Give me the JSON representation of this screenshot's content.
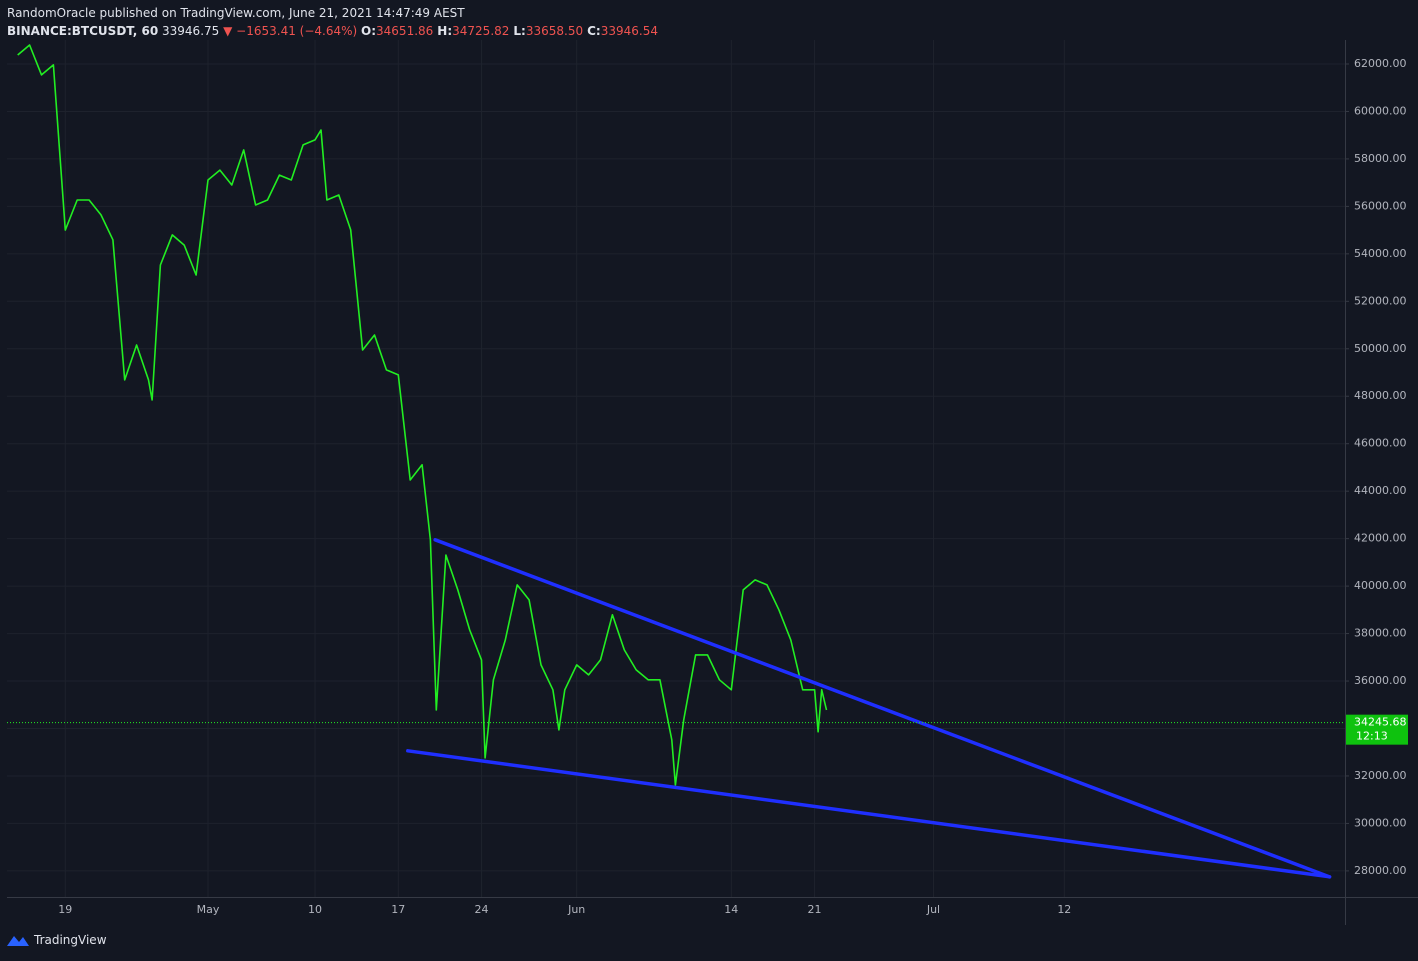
{
  "header": {
    "author_line": "RandomOracle published on TradingView.com, June 21, 2021 14:47:49 AEST",
    "symbol": "BINANCE:BTCUSDT, 60",
    "last": "33946.75",
    "arrow": "▼",
    "change": "−1653.41 (−4.64%)",
    "ohlc": [
      {
        "label": "O:",
        "value": "34651.86"
      },
      {
        "label": "H:",
        "value": "34725.82"
      },
      {
        "label": "L:",
        "value": "33658.50"
      },
      {
        "label": "C:",
        "value": "33946.54"
      }
    ]
  },
  "footer": {
    "brand": "TradingView"
  },
  "chart_data": {
    "type": "line",
    "color": "#22ee22",
    "grid": true,
    "x": [
      -4,
      -3,
      -2,
      -1,
      0,
      1,
      2,
      3,
      4,
      5,
      6,
      7,
      7.3,
      8,
      9,
      10,
      11,
      12,
      13,
      14,
      15,
      16,
      17,
      18,
      19,
      20,
      21,
      21.5,
      22,
      23,
      24,
      25,
      26,
      27,
      28,
      29,
      30,
      30.7,
      31.2,
      32,
      33,
      34,
      35,
      35.3,
      36,
      37,
      38,
      39,
      40,
      41,
      41.5,
      42,
      43,
      44,
      45,
      46,
      47,
      48,
      49,
      50,
      51,
      51.3,
      52,
      53,
      54,
      55,
      56,
      57,
      58,
      59,
      60,
      61,
      62,
      63,
      63.3,
      63.6,
      64
    ],
    "values": [
      62380,
      62800,
      61540,
      61960,
      55000,
      56270,
      56270,
      55640,
      54590,
      48690,
      50160,
      48690,
      47840,
      53530,
      54800,
      54370,
      53110,
      57110,
      57530,
      56900,
      58380,
      56060,
      56270,
      57320,
      57110,
      58590,
      58800,
      59220,
      56270,
      56480,
      55010,
      49950,
      50580,
      49110,
      48900,
      44470,
      45110,
      41950,
      34780,
      41310,
      39840,
      38150,
      36890,
      32760,
      36050,
      37730,
      40050,
      39420,
      36680,
      35630,
      33940,
      35630,
      36680,
      36260,
      36890,
      38790,
      37310,
      36470,
      36050,
      36050,
      33520,
      31620,
      34360,
      37100,
      37100,
      36050,
      35630,
      39840,
      40260,
      40050,
      39000,
      37730,
      35630,
      35630,
      33860,
      35630,
      34780
    ],
    "xlim": [
      -4.9,
      107.6
    ],
    "xticks": [
      {
        "value": 0,
        "label": "19"
      },
      {
        "value": 12,
        "label": "May"
      },
      {
        "value": 21,
        "label": "10"
      },
      {
        "value": 28,
        "label": "17"
      },
      {
        "value": 35,
        "label": "24"
      },
      {
        "value": 43,
        "label": "Jun"
      },
      {
        "value": 56,
        "label": "14"
      },
      {
        "value": 63,
        "label": "21"
      },
      {
        "value": 73,
        "label": "Jul"
      },
      {
        "value": 84,
        "label": "12"
      }
    ],
    "ylim": [
      26900,
      62800
    ],
    "yticks": [
      {
        "value": 28000,
        "label": "28000.00"
      },
      {
        "value": 30000,
        "label": "30000.00"
      },
      {
        "value": 32000,
        "label": "32000.00"
      },
      {
        "value": 34000,
        "label": "34000.00"
      },
      {
        "value": 36000,
        "label": "36000.00"
      },
      {
        "value": 38000,
        "label": "38000.00"
      },
      {
        "value": 40000,
        "label": "40000.00"
      },
      {
        "value": 42000,
        "label": "42000.00"
      },
      {
        "value": 44000,
        "label": "44000.00"
      },
      {
        "value": 46000,
        "label": "46000.00"
      },
      {
        "value": 48000,
        "label": "48000.00"
      },
      {
        "value": 50000,
        "label": "50000.00"
      },
      {
        "value": 52000,
        "label": "52000.00"
      },
      {
        "value": 54000,
        "label": "54000.00"
      },
      {
        "value": 56000,
        "label": "56000.00"
      },
      {
        "value": 58000,
        "label": "58000.00"
      },
      {
        "value": 60000,
        "label": "60000.00"
      },
      {
        "value": 62000,
        "label": "62000.00"
      }
    ],
    "last_price": {
      "value": 34245.68,
      "countdown": "12:13"
    },
    "trendlines": [
      {
        "x": [
          31.1,
          106.3
        ],
        "y": [
          41950,
          27750
        ],
        "color": "#1f2fff"
      },
      {
        "x": [
          28.8,
          106.3
        ],
        "y": [
          33060,
          27750
        ],
        "color": "#1f2fff"
      }
    ]
  }
}
